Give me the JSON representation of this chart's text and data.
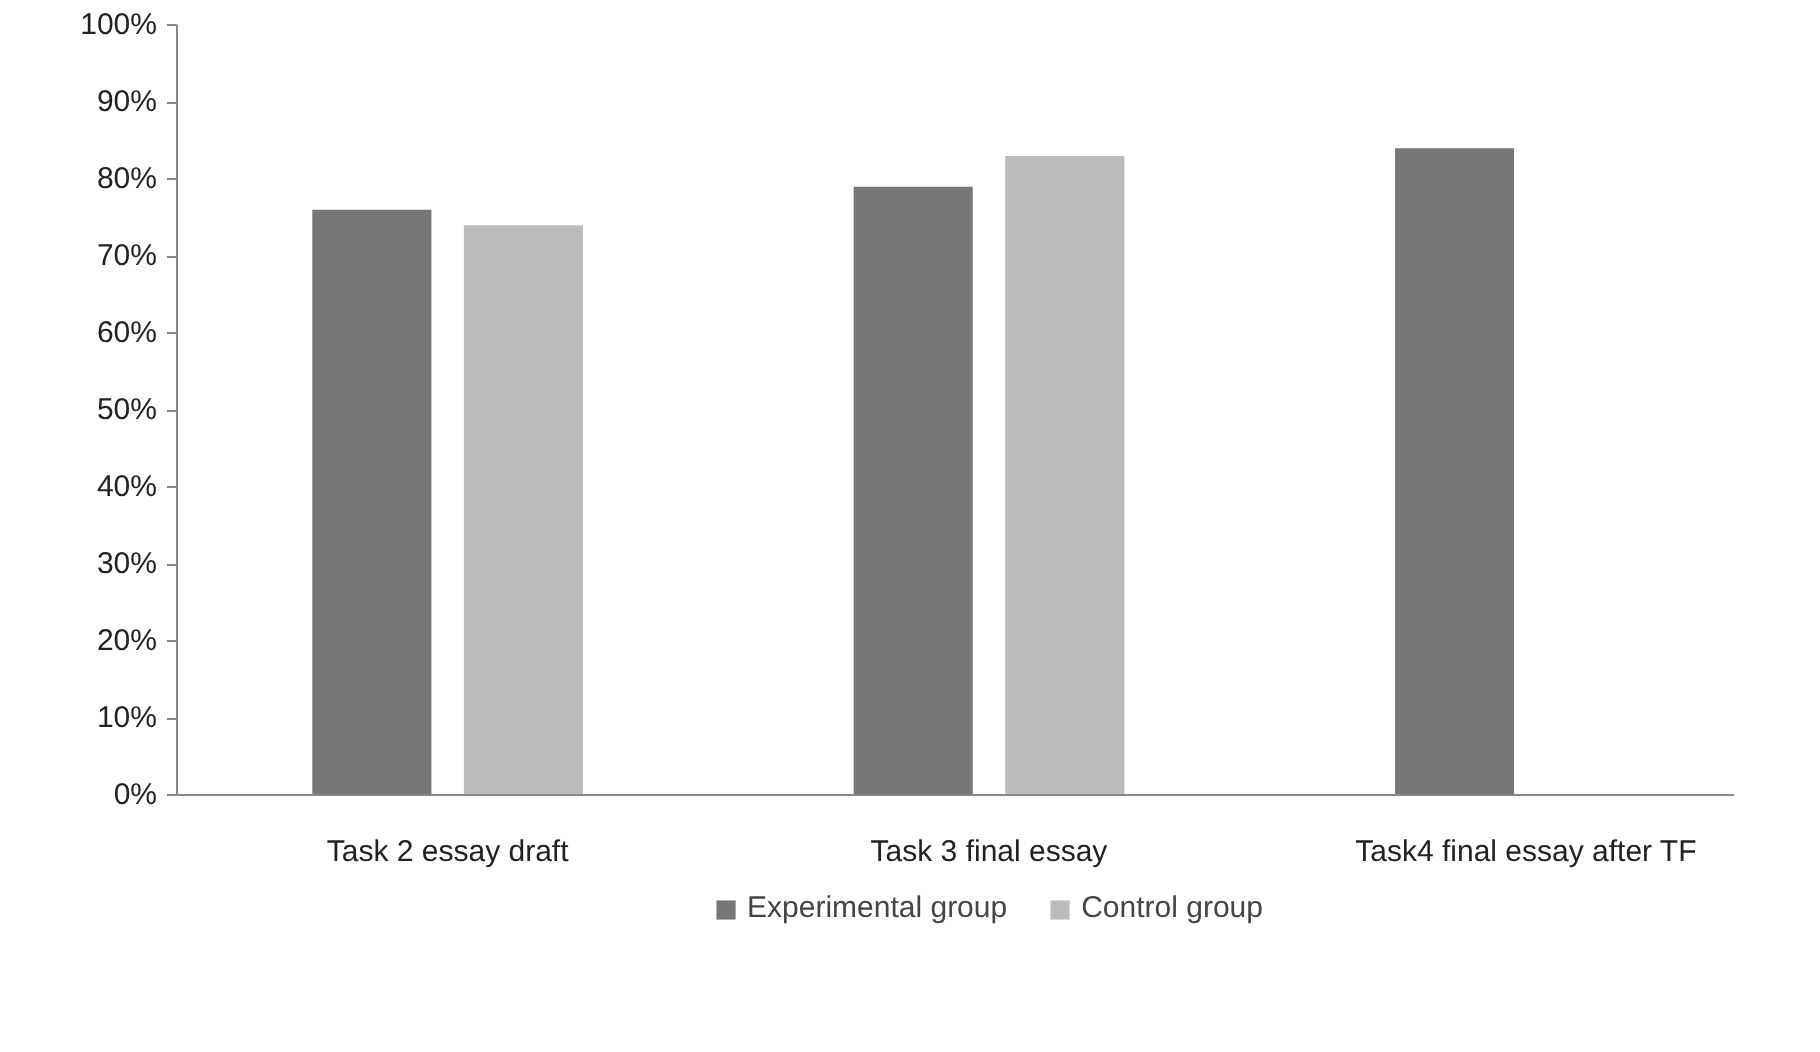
{
  "chart_data": {
    "type": "bar",
    "categories": [
      "Task 2 essay draft",
      "Task 3 final essay",
      "Task4  final essay after TF"
    ],
    "series": [
      {
        "name": "Experimental group",
        "color": "#77777a",
        "values": [
          76,
          79,
          84
        ]
      },
      {
        "name": "Control group",
        "color": "#bcbcbf",
        "values": [
          74,
          83,
          null
        ]
      }
    ],
    "ylim": [
      0,
      100
    ],
    "yticks": [
      {
        "value": 0,
        "label": "0%"
      },
      {
        "value": 10,
        "label": "10%"
      },
      {
        "value": 20,
        "label": "20%"
      },
      {
        "value": 30,
        "label": "30%"
      },
      {
        "value": 40,
        "label": "40%"
      },
      {
        "value": 50,
        "label": "50%"
      },
      {
        "value": 60,
        "label": "60%"
      },
      {
        "value": 70,
        "label": "70%"
      },
      {
        "value": 80,
        "label": "80%"
      },
      {
        "value": 90,
        "label": "90%"
      },
      {
        "value": 100,
        "label": "100%"
      }
    ],
    "grid": false,
    "legend": "bottom"
  }
}
